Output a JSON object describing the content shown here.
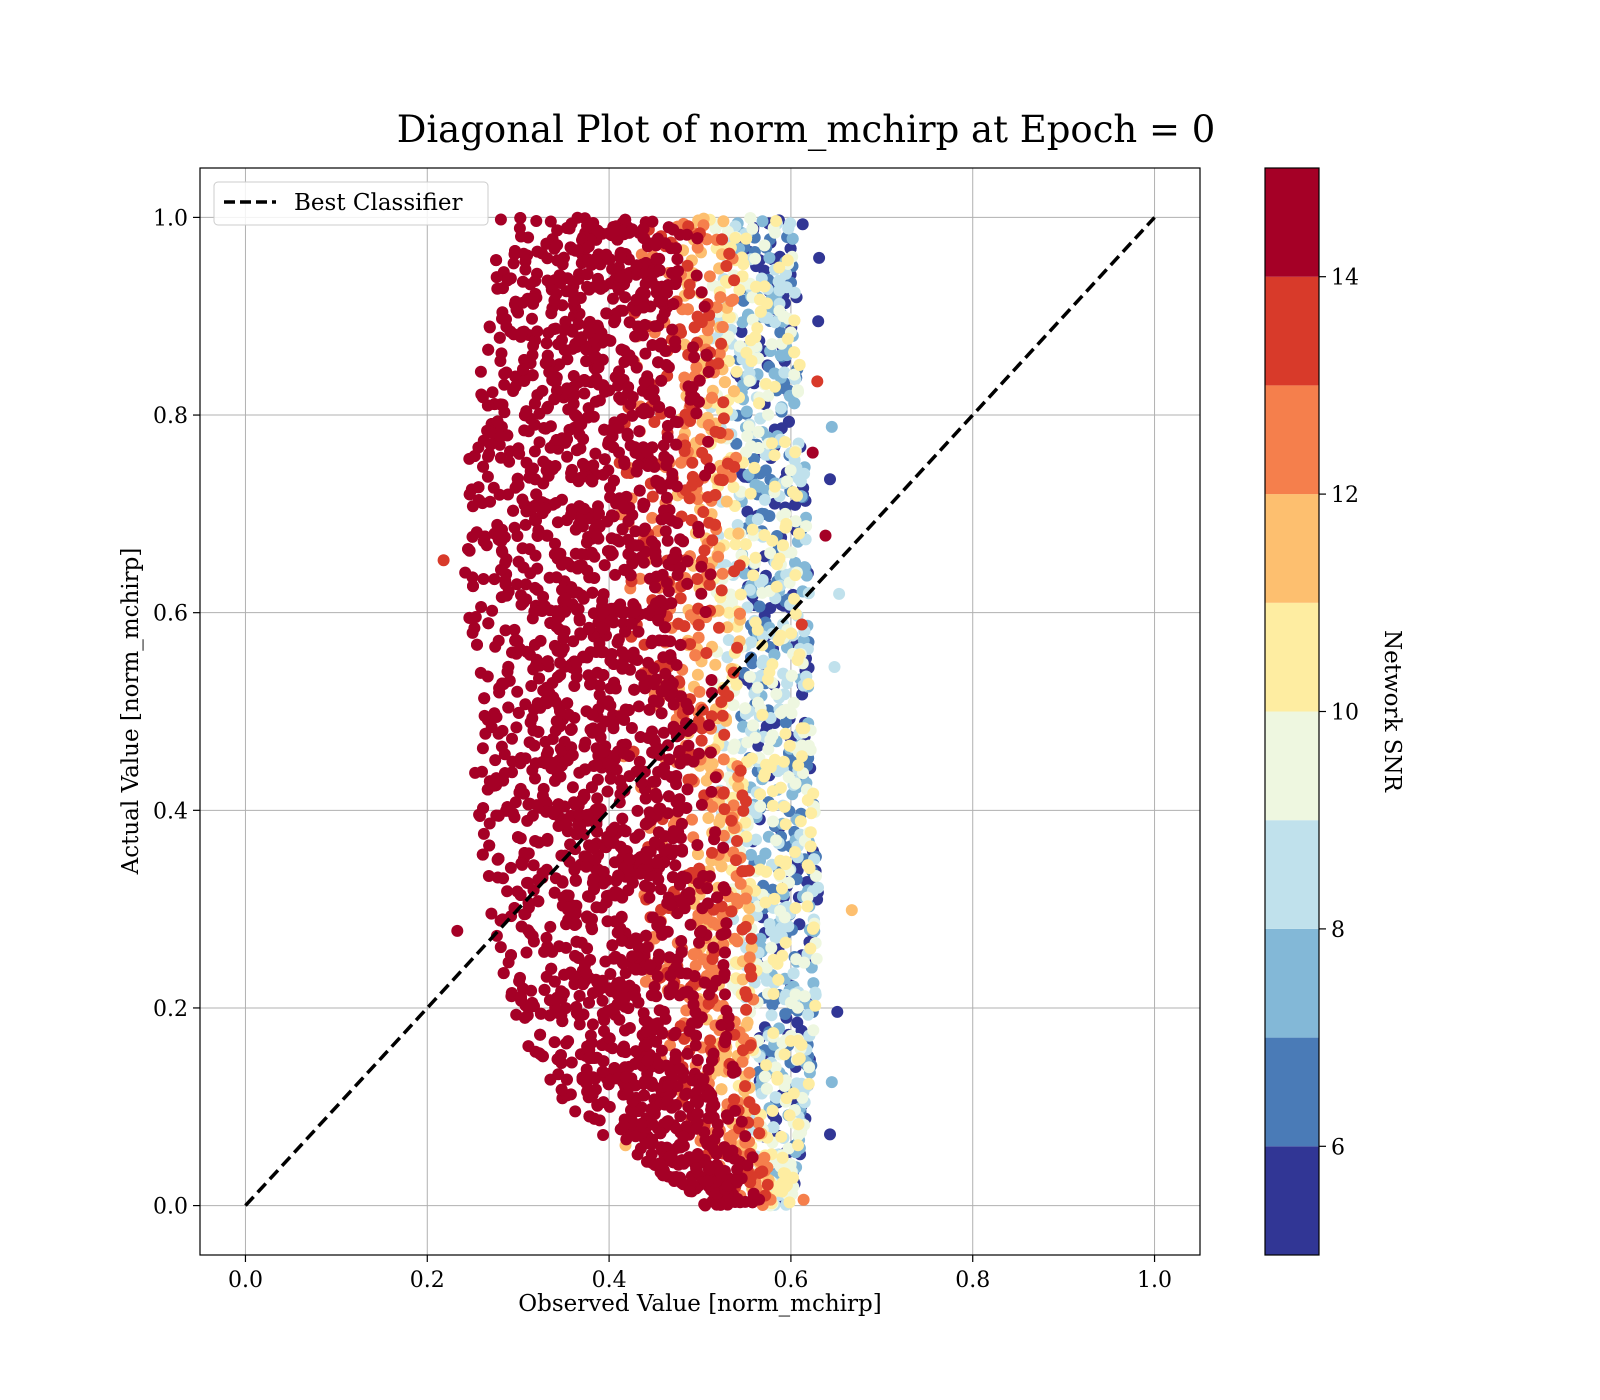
{
  "chart_data": {
    "type": "scatter",
    "title": "Diagonal Plot of norm_mchirp at Epoch = 0",
    "xlabel": "Observed Value [norm_mchirp]",
    "ylabel": "Actual Value [norm_mchirp]",
    "xlim": [
      -0.05,
      1.05
    ],
    "ylim": [
      -0.05,
      1.05
    ],
    "xticks": [
      "0.0",
      "0.2",
      "0.4",
      "0.6",
      "0.8",
      "1.0"
    ],
    "yticks": [
      "0.0",
      "0.2",
      "0.4",
      "0.6",
      "0.8",
      "1.0"
    ],
    "grid": true,
    "legend": {
      "placement": "upper-left",
      "entries": [
        {
          "label": "Best Classifier",
          "style": "dashed",
          "color": "#000000"
        }
      ]
    },
    "reference_line": {
      "name": "Best Classifier",
      "x": [
        0.0,
        1.0
      ],
      "y": [
        0.0,
        1.0
      ],
      "style": "dashed",
      "color": "#000000"
    },
    "colorbar": {
      "label": "Network SNR",
      "range": [
        5,
        15
      ],
      "ticks": [
        "6",
        "8",
        "10",
        "12",
        "14"
      ],
      "tick_values": [
        6,
        8,
        10,
        12,
        14
      ],
      "colormap": "RdYlBu_r",
      "bins": [
        {
          "from": 5,
          "to": 6,
          "color": "#313695"
        },
        {
          "from": 6,
          "to": 7,
          "color": "#4a7bb7"
        },
        {
          "from": 7,
          "to": 8,
          "color": "#83b8d7"
        },
        {
          "from": 8,
          "to": 9,
          "color": "#c0e1ec"
        },
        {
          "from": 9,
          "to": 10,
          "color": "#eef7e0"
        },
        {
          "from": 10,
          "to": 11,
          "color": "#feeda1"
        },
        {
          "from": 11,
          "to": 12,
          "color": "#fdbf6f"
        },
        {
          "from": 12,
          "to": 13,
          "color": "#f57f4c"
        },
        {
          "from": 13,
          "to": 14,
          "color": "#d83a2a"
        },
        {
          "from": 14,
          "to": 15,
          "color": "#a50026"
        }
      ]
    },
    "scatter_region": {
      "y_range": [
        0.0,
        1.0
      ],
      "x_left_edge": [
        {
          "y": 0.0,
          "x": 0.5
        },
        {
          "y": 0.1,
          "x": 0.35
        },
        {
          "y": 0.2,
          "x": 0.28
        },
        {
          "y": 0.3,
          "x": 0.27
        },
        {
          "y": 0.4,
          "x": 0.25
        },
        {
          "y": 0.5,
          "x": 0.24
        },
        {
          "y": 0.6,
          "x": 0.24
        },
        {
          "y": 0.7,
          "x": 0.24
        },
        {
          "y": 0.8,
          "x": 0.25
        },
        {
          "y": 0.9,
          "x": 0.26
        },
        {
          "y": 1.0,
          "x": 0.28
        }
      ],
      "x_right_edge": [
        {
          "y": 0.0,
          "x": 0.6
        },
        {
          "y": 0.1,
          "x": 0.62
        },
        {
          "y": 0.2,
          "x": 0.63
        },
        {
          "y": 0.3,
          "x": 0.63
        },
        {
          "y": 0.4,
          "x": 0.63
        },
        {
          "y": 0.5,
          "x": 0.62
        },
        {
          "y": 0.6,
          "x": 0.62
        },
        {
          "y": 0.7,
          "x": 0.62
        },
        {
          "y": 0.8,
          "x": 0.61
        },
        {
          "y": 0.9,
          "x": 0.61
        },
        {
          "y": 1.0,
          "x": 0.6
        }
      ],
      "outliers": [
        {
          "x": 0.667,
          "y": 0.299,
          "snr": 11.5
        },
        {
          "x": 0.653,
          "y": 0.619,
          "snr": 8.5
        },
        {
          "x": 0.613,
          "y": 0.993,
          "snr": 5.5
        },
        {
          "x": 0.648,
          "y": 0.545,
          "snr": 8.5
        },
        {
          "x": 0.645,
          "y": 0.788,
          "snr": 7.5
        },
        {
          "x": 0.651,
          "y": 0.196,
          "snr": 5.5
        },
        {
          "x": 0.631,
          "y": 0.959,
          "snr": 5.5
        },
        {
          "x": 0.638,
          "y": 0.678,
          "snr": 14.5
        },
        {
          "x": 0.629,
          "y": 0.834,
          "snr": 13.5
        },
        {
          "x": 0.63,
          "y": 0.895,
          "snr": 5.5
        },
        {
          "x": 0.218,
          "y": 0.653,
          "snr": 13.5
        },
        {
          "x": 0.233,
          "y": 0.278,
          "snr": 14.5
        },
        {
          "x": 0.418,
          "y": 0.061,
          "snr": 11.5
        },
        {
          "x": 0.614,
          "y": 0.006,
          "snr": 12.5
        },
        {
          "x": 0.612,
          "y": 0.588,
          "snr": 13.5
        },
        {
          "x": 0.624,
          "y": 0.762,
          "snr": 14.5
        },
        {
          "x": 0.643,
          "y": 0.072,
          "snr": 5.5
        },
        {
          "x": 0.645,
          "y": 0.125,
          "snr": 7.5
        },
        {
          "x": 0.643,
          "y": 0.735,
          "snr": 5.5
        }
      ]
    }
  }
}
